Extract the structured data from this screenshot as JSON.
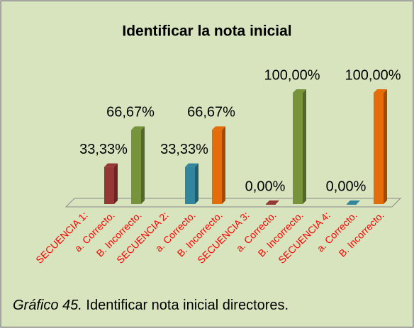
{
  "chart_data": {
    "type": "bar3d",
    "title": "Identificar la nota inicial",
    "categories": [
      "SECUENCIA 1:",
      "a. Correcto.",
      "B. Incorrecto.",
      "SECUENCIA 2:",
      "a. Correcto.",
      "B. Incorrecto.",
      "SECUENCIA 3:",
      "a. Correcto.",
      "B. Incorrecto.",
      "SECUENCIA 4:",
      "a. Correcto.",
      "B. Incorrecto."
    ],
    "values": [
      null,
      33.33,
      66.67,
      null,
      33.33,
      66.67,
      null,
      0,
      100,
      null,
      0,
      100
    ],
    "value_labels": [
      null,
      "33,33%",
      "66,67%",
      null,
      "33,33%",
      "66,67%",
      null,
      "0,00%",
      "100,00%",
      null,
      "0,00%",
      "100,00%"
    ],
    "colors": [
      null,
      "#953735",
      "#77933c",
      null,
      "#31859c",
      "#e46c0a",
      null,
      "#953735",
      "#77933c",
      null,
      "#31859c",
      "#e46c0a"
    ]
  },
  "caption": {
    "label": "Gráfico 45.",
    "text": "Identificar nota inicial directores."
  }
}
